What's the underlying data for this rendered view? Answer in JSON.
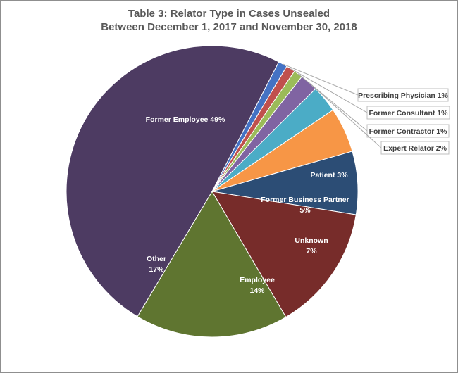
{
  "chart_data": {
    "type": "pie",
    "title": "Table 3:  Relator Type in Cases Unsealed",
    "subtitle": "Between December 1, 2017 and November 30, 2018",
    "slices": [
      {
        "label": "Prescribing Physician",
        "value_text": "1%",
        "value": 1,
        "color": "#4472c4",
        "label_style": "callout"
      },
      {
        "label": "Former Consultant",
        "value_text": "1%",
        "value": 1,
        "color": "#c0504d",
        "label_style": "callout"
      },
      {
        "label": "Former Contractor",
        "value_text": "1%",
        "value": 1,
        "color": "#9bbb59",
        "label_style": "callout"
      },
      {
        "label": "Expert Relator",
        "value_text": "2%",
        "value": 2,
        "color": "#8064a2",
        "label_style": "callout"
      },
      {
        "label": "Patient",
        "value_text": "3%",
        "value": 3,
        "color": "#4bacc6",
        "label_style": "inline"
      },
      {
        "label": "Former Business Partner",
        "value_text": "5%",
        "value": 5,
        "color": "#f79646",
        "label_style": "inline"
      },
      {
        "label": "Unknown",
        "value_text": "7%",
        "value": 7,
        "color": "#2c4d75",
        "label_style": "inline"
      },
      {
        "label": "Employee",
        "value_text": "14%",
        "value": 14,
        "color": "#772c2a",
        "label_style": "inline"
      },
      {
        "label": "Other",
        "value_text": "17%",
        "value": 17,
        "color": "#5f7530",
        "label_style": "inline"
      },
      {
        "label": "Former Employee",
        "value_text": "49%",
        "value": 49,
        "color": "#4d3b62",
        "label_style": "inline"
      }
    ],
    "legend": "none"
  }
}
